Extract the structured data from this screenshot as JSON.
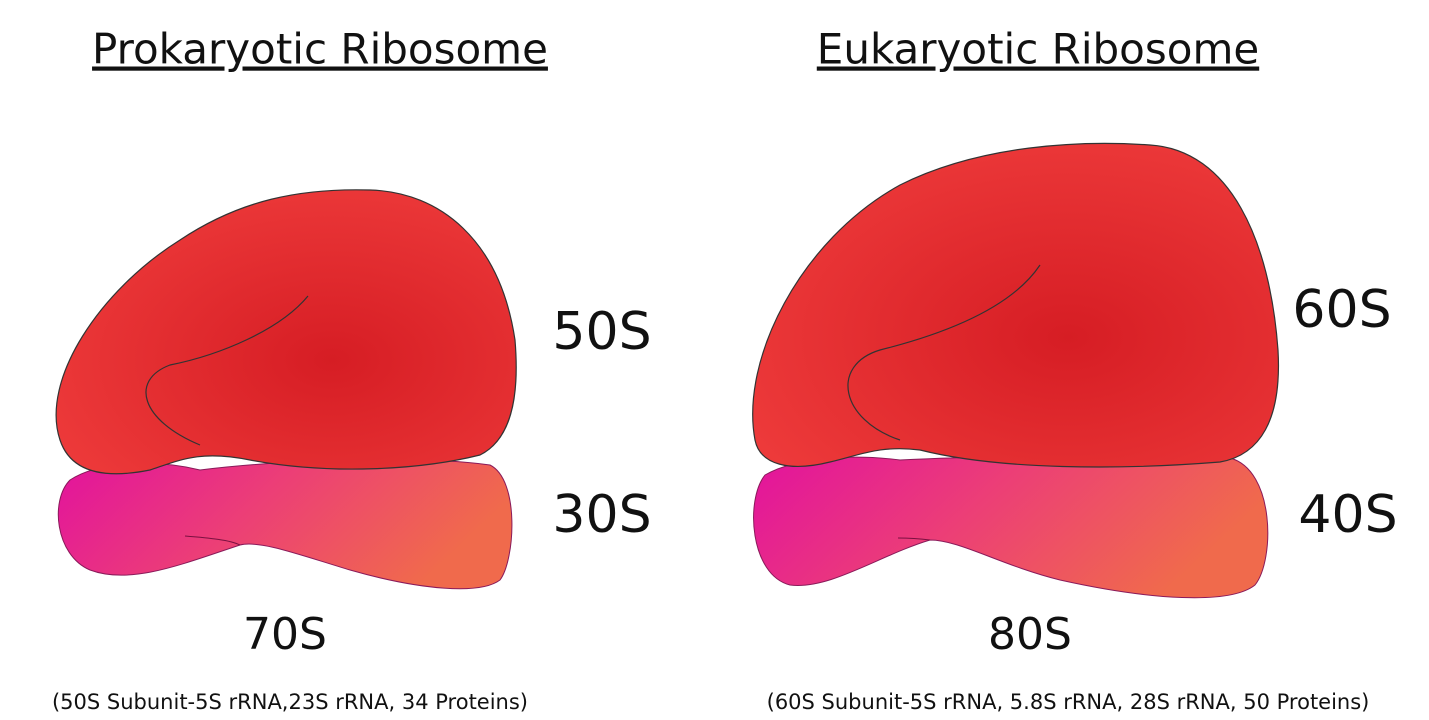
{
  "panels": [
    {
      "title": "Prokaryotic Ribosome",
      "large_subunit": "50S",
      "small_subunit": "30S",
      "total": "70S",
      "composition": "(50S Subunit-5S rRNA,23S rRNA, 34 Proteins)"
    },
    {
      "title": "Eukaryotic Ribosome",
      "large_subunit": "60S",
      "small_subunit": "40S",
      "total": "80S",
      "composition": "(60S Subunit-5S rRNA, 5.8S rRNA, 28S rRNA, 50 Proteins)"
    }
  ]
}
